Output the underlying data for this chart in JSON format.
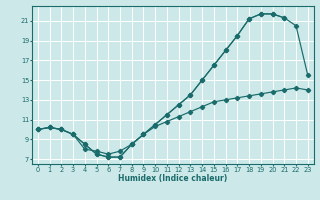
{
  "xlabel": "Humidex (Indice chaleur)",
  "ylabel": "",
  "bg_color": "#cce8e8",
  "grid_color": "#ffffff",
  "line_color": "#1a6b6b",
  "xlim": [
    -0.5,
    23.5
  ],
  "ylim": [
    6.5,
    22.5
  ],
  "xticks": [
    0,
    1,
    2,
    3,
    4,
    5,
    6,
    7,
    8,
    9,
    10,
    11,
    12,
    13,
    14,
    15,
    16,
    17,
    18,
    19,
    20,
    21,
    22,
    23
  ],
  "yticks": [
    7,
    9,
    11,
    13,
    15,
    17,
    19,
    21
  ],
  "line1_x": [
    0,
    1,
    2,
    3,
    4,
    5,
    6,
    7,
    8,
    9,
    10,
    11,
    12,
    13,
    14,
    15,
    16,
    17,
    18,
    19,
    20,
    21,
    22,
    23
  ],
  "line1_y": [
    10,
    10.2,
    10,
    9.5,
    8.5,
    7.5,
    7.2,
    7.2,
    8.5,
    9.5,
    10.5,
    11.5,
    12.5,
    13.5,
    15,
    16.5,
    18,
    19.5,
    21.2,
    21.7,
    21.7,
    21.3,
    20.5,
    15.5
  ],
  "line2_x": [
    0,
    1,
    2,
    3,
    4,
    5,
    6,
    7,
    8,
    9,
    10,
    11,
    12,
    13,
    14,
    15,
    16,
    17,
    18,
    19,
    20,
    21
  ],
  "line2_y": [
    10,
    10.2,
    10,
    9.5,
    8.5,
    7.5,
    7.2,
    7.2,
    8.5,
    9.5,
    10.5,
    11.5,
    12.5,
    13.5,
    15,
    16.5,
    18,
    19.5,
    21.2,
    21.7,
    21.7,
    21.3
  ],
  "line3_x": [
    0,
    1,
    2,
    3,
    4,
    5,
    6,
    7,
    8,
    9,
    10,
    11,
    12,
    13,
    14,
    15,
    16,
    17,
    18,
    19,
    20,
    21,
    22,
    23
  ],
  "line3_y": [
    10,
    10.2,
    10,
    9.5,
    8.0,
    7.8,
    7.5,
    7.8,
    8.5,
    9.5,
    10.3,
    10.8,
    11.3,
    11.8,
    12.3,
    12.8,
    13.0,
    13.2,
    13.4,
    13.6,
    13.8,
    14.0,
    14.2,
    14.0
  ]
}
